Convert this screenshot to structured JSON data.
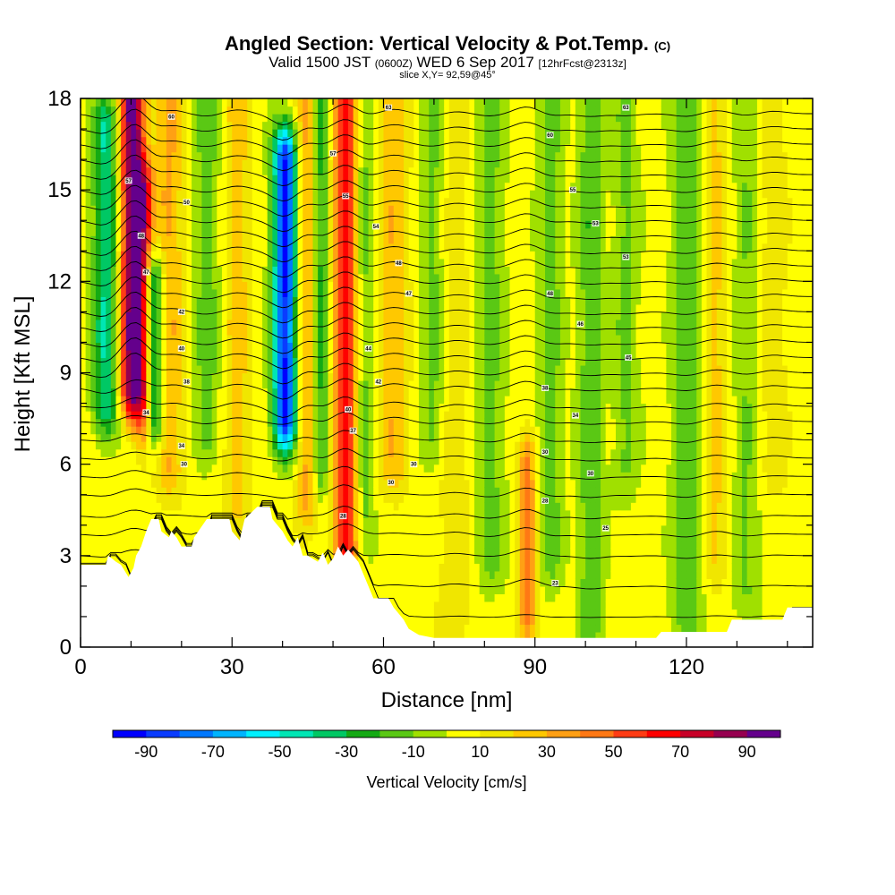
{
  "title": {
    "main": "Angled Section: Vertical Velocity & Pot.Temp.",
    "main_tag": "(C)",
    "valid_prefix": "Valid 1500 JST",
    "valid_z": "(0600Z)",
    "valid_date": "WED 6 Sep 2017",
    "forecast": "[12hrFcst@2313z]",
    "slice": "slice X,Y= 92,59@45°"
  },
  "chart_data": {
    "type": "heatmap",
    "xlabel": "Distance [nm]",
    "ylabel": "Height [Kft MSL]",
    "xlim": [
      0,
      145
    ],
    "ylim": [
      0,
      18
    ],
    "x_ticks": [
      "0",
      "30",
      "60",
      "90",
      "120"
    ],
    "x_tick_values": [
      0,
      30,
      60,
      90,
      120
    ],
    "y_ticks": [
      "0",
      "3",
      "6",
      "9",
      "12",
      "15",
      "18"
    ],
    "y_tick_values": [
      0,
      3,
      6,
      9,
      12,
      15,
      18
    ],
    "colorbar": {
      "title": "Vertical Velocity [cm/s]",
      "tick_labels": [
        "-90",
        "-70",
        "-50",
        "-30",
        "-10",
        "10",
        "30",
        "50",
        "70",
        "90"
      ],
      "bins": [
        {
          "from": -100,
          "to": -90,
          "color": "#0000ff"
        },
        {
          "from": -90,
          "to": -80,
          "color": "#0a3cff"
        },
        {
          "from": -80,
          "to": -70,
          "color": "#0078ff"
        },
        {
          "from": -70,
          "to": -60,
          "color": "#00b4ff"
        },
        {
          "from": -60,
          "to": -50,
          "color": "#00f0ff"
        },
        {
          "from": -50,
          "to": -40,
          "color": "#00e6b4"
        },
        {
          "from": -40,
          "to": -30,
          "color": "#00c864"
        },
        {
          "from": -30,
          "to": -20,
          "color": "#14aa14"
        },
        {
          "from": -20,
          "to": -10,
          "color": "#5ac814"
        },
        {
          "from": -10,
          "to": 0,
          "color": "#a0e000"
        },
        {
          "from": 0,
          "to": 10,
          "color": "#ffff00"
        },
        {
          "from": 10,
          "to": 20,
          "color": "#f0e600"
        },
        {
          "from": 20,
          "to": 30,
          "color": "#ffc800"
        },
        {
          "from": 30,
          "to": 40,
          "color": "#ffa014"
        },
        {
          "from": 40,
          "to": 50,
          "color": "#ff7814"
        },
        {
          "from": 50,
          "to": 60,
          "color": "#ff3c14"
        },
        {
          "from": 60,
          "to": 70,
          "color": "#ff0000"
        },
        {
          "from": 70,
          "to": 80,
          "color": "#c80028"
        },
        {
          "from": 80,
          "to": 90,
          "color": "#960050"
        },
        {
          "from": 90,
          "to": 100,
          "color": "#64008c"
        }
      ]
    },
    "terrain_color": "#ffffff",
    "terrain_top_kft": [
      [
        0,
        2.7
      ],
      [
        5,
        2.7
      ],
      [
        5.5,
        3.0
      ],
      [
        7,
        2.8
      ],
      [
        8,
        2.7
      ],
      [
        9.5,
        2.3
      ],
      [
        10.5,
        2.6
      ],
      [
        11,
        3.0
      ],
      [
        12,
        3.3
      ],
      [
        13,
        3.8
      ],
      [
        14,
        4.2
      ],
      [
        15.5,
        4.2
      ],
      [
        16,
        3.8
      ],
      [
        17.5,
        3.6
      ],
      [
        18,
        3.8
      ],
      [
        19,
        3.6
      ],
      [
        20,
        3.3
      ],
      [
        22,
        3.3
      ],
      [
        22.5,
        3.6
      ],
      [
        25,
        4.2
      ],
      [
        29.5,
        4.2
      ],
      [
        30,
        3.8
      ],
      [
        31.5,
        3.5
      ],
      [
        32.5,
        4.2
      ],
      [
        35,
        4.6
      ],
      [
        37.5,
        4.6
      ],
      [
        38,
        4.2
      ],
      [
        40,
        3.8
      ],
      [
        41,
        3.5
      ],
      [
        42,
        3.3
      ],
      [
        43,
        3.6
      ],
      [
        44,
        3.0
      ],
      [
        45,
        3.0
      ],
      [
        46,
        2.9
      ],
      [
        47,
        2.8
      ],
      [
        48,
        3.1
      ],
      [
        49,
        2.7
      ],
      [
        50,
        2.9
      ],
      [
        51,
        3.3
      ],
      [
        52,
        3.0
      ],
      [
        53,
        3.2
      ],
      [
        54,
        3.0
      ],
      [
        55,
        2.8
      ],
      [
        56,
        2.4
      ],
      [
        57,
        2.0
      ],
      [
        58,
        1.6
      ],
      [
        59,
        1.6
      ],
      [
        61,
        1.6
      ],
      [
        62,
        1.3
      ],
      [
        63,
        1.1
      ],
      [
        64,
        0.9
      ],
      [
        65,
        0.6
      ],
      [
        67,
        0.4
      ],
      [
        70,
        0.3
      ],
      [
        110,
        0.3
      ],
      [
        114,
        0.3
      ],
      [
        115,
        0.5
      ],
      [
        128,
        0.5
      ],
      [
        129,
        0.9
      ],
      [
        139,
        0.9
      ],
      [
        140,
        1.3
      ],
      [
        145,
        1.3
      ]
    ],
    "updrafts": [
      {
        "x": 10.3,
        "z_bottom": 8.5,
        "z_top": 18,
        "half_width_nm": 2.4,
        "peak": 95
      },
      {
        "x": 12.8,
        "z_bottom": 7.5,
        "z_top": 15,
        "half_width_nm": 1.6,
        "peak": 45
      },
      {
        "x": 17.5,
        "z_bottom": 6.0,
        "z_top": 18,
        "half_width_nm": 3.0,
        "peak": 28
      },
      {
        "x": 31.0,
        "z_bottom": 5.0,
        "z_top": 18,
        "half_width_nm": 2.5,
        "peak": 22
      },
      {
        "x": 45.0,
        "z_bottom": 5.0,
        "z_top": 18,
        "half_width_nm": 2.2,
        "peak": 32
      },
      {
        "x": 52.5,
        "z_bottom": 3.5,
        "z_top": 18,
        "half_width_nm": 2.6,
        "peak": 62
      },
      {
        "x": 62.0,
        "z_bottom": 6.0,
        "z_top": 18,
        "half_width_nm": 3.0,
        "peak": 25
      },
      {
        "x": 88.5,
        "z_bottom": 1.0,
        "z_top": 6.0,
        "half_width_nm": 1.8,
        "peak": 40
      },
      {
        "x": 74.0,
        "z_bottom": 1.0,
        "z_top": 18,
        "half_width_nm": 3.5,
        "peak": 14
      },
      {
        "x": 126.0,
        "z_bottom": 3.0,
        "z_top": 18,
        "half_width_nm": 2.5,
        "peak": 18
      },
      {
        "x": 137.0,
        "z_bottom": 6.0,
        "z_top": 18,
        "half_width_nm": 3.0,
        "peak": 15
      }
    ],
    "downdrafts": [
      {
        "x": 5.0,
        "z_bottom": 8.0,
        "z_top": 17,
        "half_width_nm": 2.5,
        "peak": -45
      },
      {
        "x": 14.5,
        "z_bottom": 7.5,
        "z_top": 12,
        "half_width_nm": 2.0,
        "peak": -55
      },
      {
        "x": 25.0,
        "z_bottom": 7.0,
        "z_top": 18,
        "half_width_nm": 2.5,
        "peak": -20
      },
      {
        "x": 40.5,
        "z_bottom": 7.5,
        "z_top": 16,
        "half_width_nm": 2.3,
        "peak": -95
      },
      {
        "x": 47.5,
        "z_bottom": 6.0,
        "z_top": 18,
        "half_width_nm": 1.8,
        "peak": -35
      },
      {
        "x": 56.0,
        "z_bottom": 4.0,
        "z_top": 18,
        "half_width_nm": 2.0,
        "peak": -22
      },
      {
        "x": 70.0,
        "z_bottom": 7.0,
        "z_top": 18,
        "half_width_nm": 2.5,
        "peak": -20
      },
      {
        "x": 81.0,
        "z_bottom": 3.0,
        "z_top": 18,
        "half_width_nm": 3.0,
        "peak": -18
      },
      {
        "x": 93.0,
        "z_bottom": 3.0,
        "z_top": 18,
        "half_width_nm": 2.5,
        "peak": -18
      },
      {
        "x": 101.0,
        "z_bottom": 1.0,
        "z_top": 18,
        "half_width_nm": 2.5,
        "peak": -22
      },
      {
        "x": 108.0,
        "z_bottom": 6.0,
        "z_top": 18,
        "half_width_nm": 2.5,
        "peak": -16
      },
      {
        "x": 120.0,
        "z_bottom": 1.0,
        "z_top": 18,
        "half_width_nm": 3.0,
        "peak": -22
      },
      {
        "x": 132.0,
        "z_bottom": 2.0,
        "z_top": 18,
        "half_width_nm": 3.0,
        "peak": -15
      }
    ],
    "isentropes_kft": [
      1.0,
      2.0,
      3.0,
      3.7,
      4.3,
      5.0,
      5.6,
      6.2,
      6.8,
      7.4,
      7.9,
      8.5,
      9.0,
      9.5,
      10.0,
      10.5,
      11.0,
      11.5,
      12.0,
      12.5,
      13.0,
      13.5,
      14.0,
      14.5,
      15.0,
      15.5,
      16.0,
      16.5,
      17.0,
      17.5
    ],
    "isentrope_labels": [
      {
        "x": 9.5,
        "z": 15.3,
        "text": "57"
      },
      {
        "x": 12.0,
        "z": 13.5,
        "text": "48"
      },
      {
        "x": 13.0,
        "z": 12.3,
        "text": "47"
      },
      {
        "x": 13.0,
        "z": 7.7,
        "text": "34"
      },
      {
        "x": 18.0,
        "z": 17.4,
        "text": "60"
      },
      {
        "x": 21.0,
        "z": 14.6,
        "text": "50"
      },
      {
        "x": 20.0,
        "z": 11.0,
        "text": "42"
      },
      {
        "x": 20.0,
        "z": 9.8,
        "text": "40"
      },
      {
        "x": 21.0,
        "z": 8.7,
        "text": "38"
      },
      {
        "x": 20.0,
        "z": 6.6,
        "text": "34"
      },
      {
        "x": 20.5,
        "z": 6.0,
        "text": "30"
      },
      {
        "x": 50.0,
        "z": 16.2,
        "text": "57"
      },
      {
        "x": 52.5,
        "z": 14.8,
        "text": "55"
      },
      {
        "x": 58.5,
        "z": 13.8,
        "text": "54"
      },
      {
        "x": 63.0,
        "z": 12.6,
        "text": "48"
      },
      {
        "x": 65.0,
        "z": 11.6,
        "text": "47"
      },
      {
        "x": 57.0,
        "z": 9.8,
        "text": "44"
      },
      {
        "x": 59.0,
        "z": 8.7,
        "text": "42"
      },
      {
        "x": 53.0,
        "z": 7.8,
        "text": "40"
      },
      {
        "x": 54.0,
        "z": 7.1,
        "text": "37"
      },
      {
        "x": 66.0,
        "z": 6.0,
        "text": "30"
      },
      {
        "x": 61.5,
        "z": 5.4,
        "text": "30"
      },
      {
        "x": 52.0,
        "z": 4.3,
        "text": "28"
      },
      {
        "x": 61.0,
        "z": 17.7,
        "text": "63"
      },
      {
        "x": 93.0,
        "z": 16.8,
        "text": "60"
      },
      {
        "x": 97.5,
        "z": 15.0,
        "text": "55"
      },
      {
        "x": 102.0,
        "z": 13.9,
        "text": "53"
      },
      {
        "x": 108.0,
        "z": 12.8,
        "text": "53"
      },
      {
        "x": 93.0,
        "z": 11.6,
        "text": "48"
      },
      {
        "x": 99.0,
        "z": 10.6,
        "text": "46"
      },
      {
        "x": 108.5,
        "z": 9.5,
        "text": "45"
      },
      {
        "x": 92.0,
        "z": 8.5,
        "text": "38"
      },
      {
        "x": 98.0,
        "z": 7.6,
        "text": "34"
      },
      {
        "x": 92.0,
        "z": 6.4,
        "text": "30"
      },
      {
        "x": 101.0,
        "z": 5.7,
        "text": "30"
      },
      {
        "x": 92.0,
        "z": 4.8,
        "text": "28"
      },
      {
        "x": 104.0,
        "z": 3.9,
        "text": "25"
      },
      {
        "x": 94.0,
        "z": 2.1,
        "text": "23"
      },
      {
        "x": 108.0,
        "z": 17.7,
        "text": "63"
      }
    ]
  }
}
